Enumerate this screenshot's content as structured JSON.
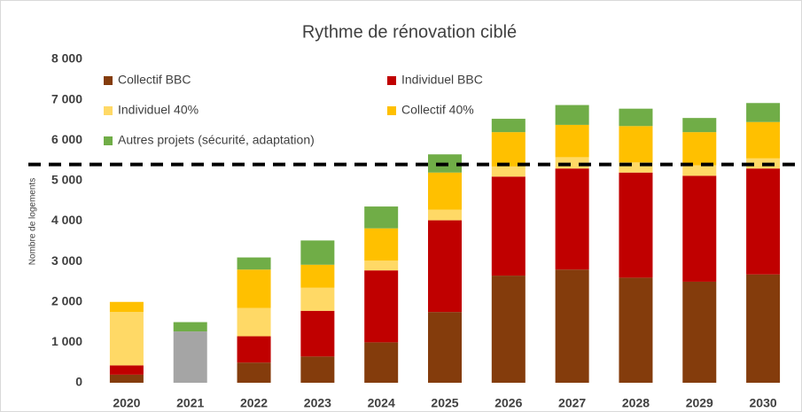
{
  "chart_data": {
    "type": "stacked_bar",
    "title": "Rythme de rénovation ciblé",
    "y_label": "Nombre de logements",
    "categories": [
      "2020",
      "2021",
      "2022",
      "2023",
      "2024",
      "2025",
      "2026",
      "2027",
      "2028",
      "2029",
      "2030"
    ],
    "series": [
      {
        "name": null,
        "color": "#a5a5a5",
        "values": [
          null,
          1270,
          null,
          null,
          null,
          null,
          null,
          null,
          null,
          null,
          null
        ]
      },
      {
        "name": "Collectif BBC",
        "color": "#843c0c",
        "values": [
          200,
          null,
          500,
          650,
          1000,
          1750,
          2650,
          2800,
          2600,
          2500,
          2680
        ]
      },
      {
        "name": "Individuel BBC",
        "color": "#c00000",
        "values": [
          230,
          null,
          650,
          1130,
          1780,
          2270,
          2450,
          2500,
          2600,
          2620,
          2620
        ]
      },
      {
        "name": "Individuel 40%",
        "color": "#ffd966",
        "values": [
          1320,
          null,
          700,
          570,
          240,
          260,
          250,
          280,
          250,
          260,
          250
        ]
      },
      {
        "name": "Collectif 40%",
        "color": "#ffc000",
        "values": [
          250,
          null,
          950,
          570,
          800,
          920,
          850,
          800,
          900,
          820,
          900
        ]
      },
      {
        "name": "Autres projets  (sécurité, adaptation)",
        "color": "#70ad47",
        "values": [
          null,
          230,
          300,
          600,
          540,
          450,
          330,
          490,
          430,
          350,
          470
        ]
      }
    ],
    "reference_line": 5400,
    "ylim": [
      0,
      8000
    ],
    "yticks": [
      0,
      {
        "value": 1000,
        "label": "1 000"
      },
      {
        "value": 2000,
        "label": "2 000"
      },
      {
        "value": 3000,
        "label": "3 000"
      },
      {
        "value": 4000,
        "label": "4 000"
      },
      {
        "value": 5000,
        "label": "5 000"
      },
      {
        "value": 6000,
        "label": "6 000"
      },
      {
        "value": 7000,
        "label": "7 000"
      },
      {
        "value": 8000,
        "label": "8 000"
      }
    ]
  }
}
